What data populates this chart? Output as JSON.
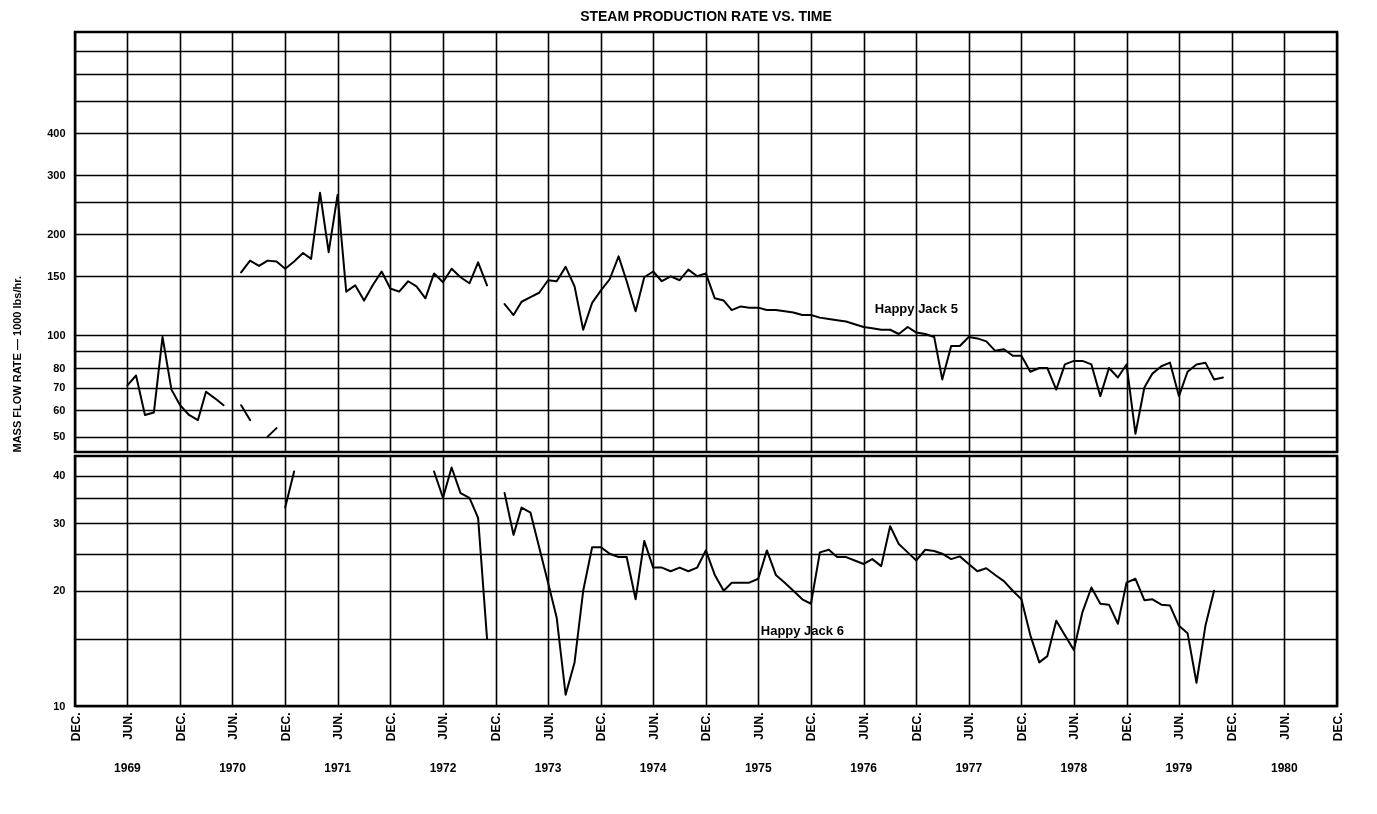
{
  "chart_data": [
    {
      "type": "line",
      "title": "STEAM PRODUCTION RATE VS. TIME",
      "ylabel": "MASS FLOW RATE — 1000 lbs/hr.",
      "log": true,
      "grid": true,
      "tick_labels": "y",
      "xlim": [
        "1968-12",
        "1980-12"
      ],
      "xticks": [
        "1968-12",
        "1969-06",
        "1969-12",
        "1970-06",
        "1970-12",
        "1971-06",
        "1971-12",
        "1972-06",
        "1972-12",
        "1973-06",
        "1973-12",
        "1974-06",
        "1974-12",
        "1975-06",
        "1975-12",
        "1976-06",
        "1976-12",
        "1977-06",
        "1977-12",
        "1978-06",
        "1978-12",
        "1979-06",
        "1979-12",
        "1980-06",
        "1980-12"
      ],
      "ylim": [
        45,
        800
      ],
      "yticks": [
        50,
        60,
        70,
        80,
        {
          "value": 90,
          "label": null
        },
        100,
        150,
        200,
        {
          "value": 250,
          "label": null
        },
        300,
        400,
        {
          "value": 500,
          "label": null
        },
        {
          "value": 600,
          "label": null
        },
        {
          "value": 700,
          "label": null
        }
      ],
      "series": [
        {
          "name": "Happy Jack 5",
          "color": "#000000",
          "x": [
            "1970-07",
            "1970-08",
            "1970-09",
            "1970-10",
            "1970-11",
            "1970-12",
            "1971-01",
            "1971-02",
            "1971-03",
            "1971-04",
            "1971-05",
            "1971-06",
            "1971-07",
            "1971-08",
            "1971-09",
            "1971-10",
            "1971-11",
            "1971-12",
            "1972-01",
            "1972-02",
            "1972-03",
            "1972-04",
            "1972-05",
            "1972-06",
            "1972-07",
            "1972-08",
            "1972-09",
            "1972-10",
            "1972-11",
            "1972-12",
            "1973-01",
            "1973-02",
            "1973-03",
            "1973-04",
            "1973-05",
            "1973-06",
            "1973-07",
            "1973-08",
            "1973-09",
            "1973-10",
            "1973-11",
            "1973-12",
            "1974-01",
            "1974-02",
            "1974-03",
            "1974-04",
            "1974-05",
            "1974-06",
            "1974-07",
            "1974-08",
            "1974-09",
            "1974-10",
            "1974-11",
            "1974-12",
            "1975-01",
            "1975-02",
            "1975-03",
            "1975-04",
            "1975-05",
            "1975-06",
            "1975-07",
            "1975-08",
            "1975-09",
            "1975-10",
            "1975-11",
            "1975-12",
            "1976-01",
            "1976-02",
            "1976-03",
            "1976-04",
            "1976-05",
            "1976-06",
            "1976-07",
            "1976-08",
            "1976-09",
            "1976-10",
            "1976-11",
            "1976-12",
            "1977-01",
            "1977-02",
            "1977-03",
            "1977-04",
            "1977-05",
            "1977-06",
            "1977-07",
            "1977-08",
            "1977-09",
            "1977-10",
            "1977-11",
            "1977-12",
            "1978-01",
            "1978-02",
            "1978-03",
            "1978-04",
            "1978-05",
            "1978-06",
            "1978-07",
            "1978-08",
            "1978-09",
            "1978-10",
            "1978-11",
            "1978-12",
            "1979-01",
            "1979-02",
            "1979-03",
            "1979-04",
            "1979-05",
            "1979-06",
            "1979-07",
            "1979-08",
            "1979-09",
            "1979-10",
            "1979-11"
          ],
          "values": [
            154,
            167,
            161,
            167,
            166,
            158,
            166,
            176,
            169,
            266,
            177,
            262,
            135,
            141,
            127,
            141,
            155,
            138,
            135,
            145,
            140,
            129,
            153,
            144,
            158,
            149,
            143,
            165,
            141,
            null,
            124,
            115,
            126,
            130,
            134,
            146,
            145,
            160,
            140,
            104,
            125,
            136,
            147,
            172,
            145,
            118,
            149,
            155,
            145,
            150,
            146,
            157,
            150,
            153,
            129,
            127,
            119,
            122,
            121,
            121,
            119,
            119,
            118,
            117,
            115,
            115,
            113,
            112,
            111,
            110,
            108,
            106,
            105,
            104,
            104,
            101,
            106,
            102,
            101,
            99,
            74,
            93,
            93,
            99,
            98,
            96,
            90,
            91,
            87,
            87,
            78,
            80,
            80,
            69,
            82,
            84,
            84,
            82,
            66,
            80,
            75,
            82,
            51,
            70,
            77,
            81,
            83,
            66,
            78,
            82,
            83,
            74,
            75
          ]
        },
        {
          "color": "#000000",
          "x": [
            "1969-06",
            "1969-07",
            "1969-08",
            "1969-09",
            "1969-10",
            "1969-11",
            "1969-12",
            "1970-01",
            "1970-02",
            "1970-03",
            "1970-04",
            "1970-05",
            "1970-06",
            "1970-07",
            "1970-08",
            "1970-09",
            "1970-10",
            "1970-11"
          ],
          "values": [
            71,
            76,
            58,
            59,
            99,
            69,
            62,
            58,
            56,
            68,
            65,
            62,
            null,
            62,
            56,
            null,
            50,
            53
          ]
        }
      ]
    },
    {
      "type": "line",
      "log": true,
      "grid": true,
      "xlim": [
        "1968-12",
        "1980-12"
      ],
      "xticks": [
        {
          "value": "1968-12",
          "label": "DEC."
        },
        {
          "value": "1969-06",
          "label": "JUN."
        },
        {
          "value": "1969-12",
          "label": "DEC."
        },
        {
          "value": "1970-06",
          "label": "JUN."
        },
        {
          "value": "1970-12",
          "label": "DEC."
        },
        {
          "value": "1971-06",
          "label": "JUN."
        },
        {
          "value": "1971-12",
          "label": "DEC."
        },
        {
          "value": "1972-06",
          "label": "JUN."
        },
        {
          "value": "1972-12",
          "label": "DEC."
        },
        {
          "value": "1973-06",
          "label": "JUN."
        },
        {
          "value": "1973-12",
          "label": "DEC."
        },
        {
          "value": "1974-06",
          "label": "JUN."
        },
        {
          "value": "1974-12",
          "label": "DEC."
        },
        {
          "value": "1975-06",
          "label": "JUN."
        },
        {
          "value": "1975-12",
          "label": "DEC."
        },
        {
          "value": "1976-06",
          "label": "JUN."
        },
        {
          "value": "1976-12",
          "label": "DEC."
        },
        {
          "value": "1977-06",
          "label": "JUN."
        },
        {
          "value": "1977-12",
          "label": "DEC."
        },
        {
          "value": "1978-06",
          "label": "JUN."
        },
        {
          "value": "1978-12",
          "label": "DEC."
        },
        {
          "value": "1979-06",
          "label": "JUN."
        },
        {
          "value": "1979-12",
          "label": "DEC."
        },
        {
          "value": "1980-06",
          "label": "JUN."
        },
        {
          "value": "1980-12",
          "label": "DEC."
        }
      ],
      "x2lim": [
        "1968-12",
        "1980-12"
      ],
      "x2ticks": [
        {
          "value": "1969-06",
          "label": "1969"
        },
        {
          "value": "1970-06",
          "label": "1970"
        },
        {
          "value": "1971-06",
          "label": "1971"
        },
        {
          "value": "1972-06",
          "label": "1972"
        },
        {
          "value": "1973-06",
          "label": "1973"
        },
        {
          "value": "1974-06",
          "label": "1974"
        },
        {
          "value": "1975-06",
          "label": "1975"
        },
        {
          "value": "1976-06",
          "label": "1976"
        },
        {
          "value": "1977-06",
          "label": "1977"
        },
        {
          "value": "1978-06",
          "label": "1978"
        },
        {
          "value": "1979-06",
          "label": "1979"
        },
        {
          "value": "1980-06",
          "label": "1980"
        }
      ],
      "ylim": [
        10,
        45
      ],
      "yticks": [
        10,
        {
          "value": 15,
          "label": null
        },
        20,
        {
          "value": 25,
          "label": null
        },
        30,
        {
          "value": 35,
          "label": null
        },
        40
      ],
      "series": [
        {
          "name": "Happy Jack 6",
          "color": "#000000",
          "x": [
            "1970-12",
            "1971-01",
            "1971-02",
            "1972-05",
            "1972-06",
            "1972-07",
            "1972-08",
            "1972-09",
            "1972-10",
            "1972-11",
            "1972-12",
            "1973-01",
            "1973-02",
            "1973-03",
            "1973-04",
            "1973-05",
            "1973-06",
            "1973-07",
            "1973-08",
            "1973-09",
            "1973-10",
            "1973-11",
            "1973-12",
            "1974-01",
            "1974-02",
            "1974-03",
            "1974-04",
            "1974-05",
            "1974-06",
            "1974-07",
            "1974-08",
            "1974-09",
            "1974-10",
            "1974-11",
            "1974-12",
            "1975-01",
            "1975-02",
            "1975-03",
            "1975-04",
            "1975-05",
            "1975-06",
            "1975-07",
            "1975-08",
            "1975-09",
            "1975-10",
            "1975-11",
            "1975-12",
            "1976-01",
            "1976-02",
            "1976-03",
            "1976-04",
            "1976-05",
            "1976-06",
            "1976-07",
            "1976-08",
            "1976-09",
            "1976-10",
            "1976-11",
            "1976-12",
            "1977-01",
            "1977-02",
            "1977-03",
            "1977-04",
            "1977-05",
            "1977-06",
            "1977-07",
            "1977-08",
            "1977-09",
            "1977-10",
            "1977-11",
            "1977-12",
            "1978-01",
            "1978-02",
            "1978-03",
            "1978-04",
            "1978-05",
            "1978-06",
            "1978-07",
            "1978-08",
            "1978-09",
            "1978-10",
            "1978-11",
            "1978-12",
            "1979-01",
            "1979-02",
            "1979-03",
            "1979-04",
            "1979-05",
            "1979-06",
            "1979-07",
            "1979-08",
            "1979-09",
            "1979-10"
          ],
          "values": [
            33,
            41,
            null,
            41,
            35,
            42,
            36,
            35,
            31,
            15,
            null,
            36,
            28,
            33,
            32,
            26,
            21,
            17,
            10.7,
            13,
            20,
            26,
            26,
            25,
            24.5,
            24.5,
            19,
            27,
            23,
            23,
            22.5,
            23,
            22.5,
            23,
            25.5,
            22,
            20,
            21,
            21,
            21,
            21.5,
            25.5,
            22,
            21,
            20,
            19,
            18.5,
            25.2,
            25.6,
            24.5,
            24.5,
            24,
            23.5,
            24.2,
            23.2,
            29.5,
            26.5,
            25.2,
            24,
            25.6,
            25.4,
            25,
            24.2,
            24.6,
            23.5,
            22.5,
            22.9,
            22,
            21.2,
            20,
            19,
            15.3,
            13,
            13.5,
            16.7,
            15.3,
            14,
            17.6,
            20.4,
            18.5,
            18.4,
            16.4,
            21,
            21.5,
            18.9,
            19,
            18.4,
            18.3,
            16.2,
            15.5,
            11.5,
            16.2,
            20
          ]
        }
      ]
    }
  ]
}
